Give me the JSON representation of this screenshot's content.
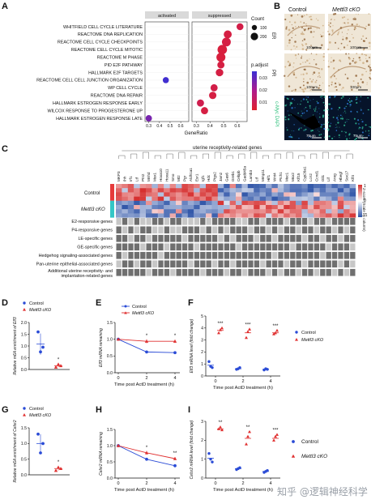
{
  "panels": {
    "A": "A",
    "B": "B",
    "C": "C",
    "D": "D",
    "E": "E",
    "F": "F",
    "G": "G",
    "H": "H",
    "I": "I"
  },
  "panelA": {
    "facet_activated": "activated",
    "facet_suppressed": "suppressed",
    "xlabel": "GeneRatio",
    "legend_count_title": "Count",
    "legend_count_values": [
      "100",
      "200"
    ],
    "legend_padj_title": "p.adjust",
    "legend_padj_values": [
      "0.01",
      "0.02",
      "0.03"
    ],
    "colors": {
      "low": "#e0202c",
      "mid": "#b01a8c",
      "high": "#3a2fd4"
    }
  },
  "panelB": {
    "col_control": "Control",
    "col_cko": "Mettl3 cKO",
    "rows": [
      "ER",
      "PR",
      "c-Myc DAPI"
    ],
    "scale": "100μm",
    "scale_fluor": "75μm"
  },
  "panelC": {
    "header": "uterine receptivity-related genes",
    "genes": [
      "MKP3",
      "Ihh",
      "Irf1",
      "Ltf",
      "Ptn2",
      "Mnhd",
      "Msx1",
      "Hoxa10",
      "Hoxa11",
      "Smo",
      "Mt2",
      "Pgr",
      "Aldh1a1",
      "Esr1",
      "Igf1",
      "Hdc",
      "Ptgs2",
      "Jam2",
      "Gas6",
      "Greb1",
      "Cebpb",
      "Gadd45a",
      "Lamb3",
      "Ltf",
      "Mmp11",
      "Hif1",
      "Wnt4",
      "Ptch1",
      "Muc1",
      "Msx2",
      "Klf15",
      "Cyp26a1",
      "Lcn2",
      "Ccnd1",
      "Gli1",
      "Lif",
      "Areg",
      "Hbegf",
      "Sox17",
      "Klf4"
    ],
    "row_labels": [
      "E2-responsive genes",
      "P4-responsive genes",
      "LE-specific genes",
      "GE-specific genes",
      "Hedgehog signaling-associated genes",
      "Pan-uterine epithelial-associated genes",
      "Additional uterine receptivity- and implantation-related genes"
    ],
    "group_control": "Control",
    "group_cko": "Mettl3 cKO",
    "zscore_label": "Z-score (Scale by column)",
    "zscore_ticks": [
      "1",
      "0",
      "-1"
    ],
    "colors": {
      "high": "#d63030",
      "mid": "#ffffff",
      "low": "#2f55a8",
      "control_bar": "#e63b3b",
      "cko_bar": "#34c6c6"
    }
  },
  "legend": {
    "control": "Control",
    "cko": "Mettl3 cKO"
  },
  "axes": {
    "d_ylabel": "Relative m6A enrichment of Elf3",
    "e_ylabel": "Elf3 mRNA remaining",
    "f_ylabel": "Elf3 mRNA level (fold change)",
    "g_ylabel": "Relative m6A enrichment of Celsr2",
    "h_ylabel": "Celsr2 mRNA remaining",
    "i_ylabel": "Celsr2 mRNA level (fold change)",
    "time_xlabel": "Time post ActD treatment (h)",
    "time_ticks": [
      "0",
      "2",
      "4"
    ]
  },
  "sig": {
    "one": "*",
    "two": "**",
    "three": "***"
  },
  "watermark": "知乎 @逻辑神经科学",
  "chart_data": [
    {
      "id": "A",
      "type": "scatter",
      "title": "",
      "xlabel": "GeneRatio",
      "categories": [
        "WHITFIELD CELL CYCLE LITERATURE",
        "REACTOME DNA REPLICATION",
        "REACTOME CELL CYCLE CHECKPOINTS",
        "REACTOME CELL CYCLE MITOTIC",
        "REACTOME M PHASE",
        "PID E2F PATHWAY",
        "HALLMARK E2F TARGETS",
        "REACTOME CELL CELL JUNCTION ORGANIZATION",
        "WP CELL CYCLE",
        "REACTOME DNA REPAIR",
        "HALLMARK ESTROGEN RESPONSE EARLY",
        "WILCOX RESPONSE TO PROGESTERONE UP",
        "HALLMARK ESTROGEN RESPONSE LATE"
      ],
      "activated_ticks": [
        "0.3",
        "0.4",
        "0.5",
        "0.6"
      ],
      "suppressed_ticks": [
        "0.3",
        "0.4",
        "0.5",
        "0.6"
      ],
      "xlim": [
        0.28,
        0.66
      ],
      "series": [
        {
          "facet": "activated",
          "points": [
            {
              "term": "REACTOME CELL CELL JUNCTION ORGANIZATION",
              "x": 0.46,
              "count": 60,
              "padj": 0.033
            },
            {
              "term": "HALLMARK ESTROGEN RESPONSE LATE",
              "x": 0.3,
              "count": 70,
              "padj": 0.025
            }
          ]
        },
        {
          "facet": "suppressed",
          "points": [
            {
              "term": "WHITFIELD CELL CYCLE LITERATURE",
              "x": 0.62,
              "count": 90,
              "padj": 0.005
            },
            {
              "term": "REACTOME DNA REPLICATION",
              "x": 0.53,
              "count": 140,
              "padj": 0.004
            },
            {
              "term": "REACTOME CELL CYCLE CHECKPOINTS",
              "x": 0.52,
              "count": 190,
              "padj": 0.004
            },
            {
              "term": "REACTOME CELL CYCLE MITOTIC",
              "x": 0.49,
              "count": 230,
              "padj": 0.003
            },
            {
              "term": "REACTOME M PHASE",
              "x": 0.48,
              "count": 200,
              "padj": 0.003
            },
            {
              "term": "PID E2F PATHWAY",
              "x": 0.48,
              "count": 100,
              "padj": 0.004
            },
            {
              "term": "HALLMARK E2F TARGETS",
              "x": 0.47,
              "count": 120,
              "padj": 0.004
            },
            {
              "term": "WP CELL CYCLE",
              "x": 0.43,
              "count": 100,
              "padj": 0.005
            },
            {
              "term": "REACTOME DNA REPAIR",
              "x": 0.42,
              "count": 110,
              "padj": 0.004
            },
            {
              "term": "HALLMARK ESTROGEN RESPONSE EARLY",
              "x": 0.33,
              "count": 100,
              "padj": 0.006
            },
            {
              "term": "WILCOX RESPONSE TO PROGESTERONE UP",
              "x": 0.36,
              "count": 100,
              "padj": 0.004
            }
          ]
        }
      ]
    },
    {
      "id": "D",
      "type": "scatter",
      "ylabel": "Relative m6A enrichment of Elf3",
      "yticks": [
        "0.0",
        "0.5",
        "1.0",
        "1.5",
        "2.0"
      ],
      "ylim": [
        0,
        2.0
      ],
      "series": [
        {
          "name": "Control",
          "mean": 1.08,
          "sd": 0.45,
          "points": [
            1.6,
            0.75,
            0.95
          ]
        },
        {
          "name": "Mettl3 cKO",
          "mean": 0.16,
          "sd": 0.06,
          "points": [
            0.1,
            0.22,
            0.16
          ]
        }
      ],
      "sig": "*"
    },
    {
      "id": "E",
      "type": "line",
      "ylabel": "Elf3 mRNA remaining",
      "xlabel": "Time post ActD treatment (h)",
      "x": [
        0,
        2,
        4
      ],
      "yticks": [
        "0.0",
        "0.5",
        "1.0",
        "1.5"
      ],
      "ylim": [
        0,
        1.5
      ],
      "series": [
        {
          "name": "Control",
          "values": [
            1.0,
            0.62,
            0.6
          ],
          "err": [
            0.02,
            0.03,
            0.04
          ]
        },
        {
          "name": "Mettl3 cKO",
          "values": [
            1.0,
            0.94,
            0.94
          ],
          "err": [
            0.02,
            0.06,
            0.05
          ]
        }
      ],
      "sig": [
        "",
        "*",
        "*"
      ]
    },
    {
      "id": "F",
      "type": "scatter",
      "ylabel": "Elf3 mRNA level (fold change)",
      "xlabel": "Time post ActD treatment (h)",
      "x": [
        0,
        2,
        4
      ],
      "yticks": [
        "0",
        "1",
        "2",
        "3",
        "4",
        "5"
      ],
      "ylim": [
        0,
        5
      ],
      "series": [
        {
          "name": "Control",
          "means": [
            0.9,
            0.6,
            0.55
          ],
          "points": [
            [
              1.2,
              0.8,
              0.7
            ],
            [
              0.55,
              0.6,
              0.7
            ],
            [
              0.5,
              0.6,
              0.55
            ]
          ]
        },
        {
          "name": "Mettl3 cKO",
          "means": [
            3.8,
            3.6,
            3.6
          ],
          "points": [
            [
              3.6,
              3.85,
              4.0
            ],
            [
              3.2,
              3.7,
              3.9
            ],
            [
              3.5,
              3.6,
              3.8
            ]
          ]
        }
      ],
      "sig": [
        "***",
        "***",
        "***"
      ]
    },
    {
      "id": "G",
      "type": "scatter",
      "ylabel": "Relative m6A enrichment of Celsr2",
      "yticks": [
        "0.0",
        "0.5",
        "1.0",
        "1.5"
      ],
      "ylim": [
        0,
        1.5
      ],
      "series": [
        {
          "name": "Control",
          "mean": 1.0,
          "sd": 0.3,
          "points": [
            1.3,
            0.7,
            1.0
          ]
        },
        {
          "name": "Mettl3 cKO",
          "mean": 0.2,
          "sd": 0.06,
          "points": [
            0.14,
            0.24,
            0.2
          ]
        }
      ],
      "sig": "*"
    },
    {
      "id": "H",
      "type": "line",
      "ylabel": "Celsr2 mRNA remaining",
      "xlabel": "Time post ActD treatment (h)",
      "x": [
        0,
        2,
        4
      ],
      "yticks": [
        "0.0",
        "0.5",
        "1.0",
        "1.5"
      ],
      "ylim": [
        0,
        1.5
      ],
      "series": [
        {
          "name": "Control",
          "values": [
            1.0,
            0.58,
            0.38
          ],
          "err": [
            0.02,
            0.04,
            0.05
          ]
        },
        {
          "name": "Mettl3 cKO",
          "values": [
            1.0,
            0.78,
            0.6
          ],
          "err": [
            0.02,
            0.06,
            0.05
          ]
        }
      ],
      "sig": [
        "",
        "*",
        "**"
      ]
    },
    {
      "id": "I",
      "type": "scatter",
      "ylabel": "Celsr2 mRNA level (fold change)",
      "xlabel": "Time post ActD treatment (h)",
      "x": [
        0,
        2,
        4
      ],
      "yticks": [
        "0",
        "1",
        "2",
        "3"
      ],
      "ylim": [
        0,
        3
      ],
      "series": [
        {
          "name": "Control",
          "means": [
            1.05,
            0.5,
            0.35
          ],
          "points": [
            [
              1.3,
              1.0,
              0.85
            ],
            [
              0.45,
              0.5,
              0.55
            ],
            [
              0.3,
              0.35,
              0.4
            ]
          ]
        },
        {
          "name": "Mettl3 cKO",
          "means": [
            2.6,
            2.1,
            2.1
          ],
          "points": [
            [
              2.6,
              2.7,
              2.55
            ],
            [
              1.8,
              2.2,
              2.45
            ],
            [
              2.0,
              2.2,
              2.3
            ]
          ]
        }
      ],
      "sig": [
        "**",
        "**",
        "***"
      ]
    }
  ]
}
